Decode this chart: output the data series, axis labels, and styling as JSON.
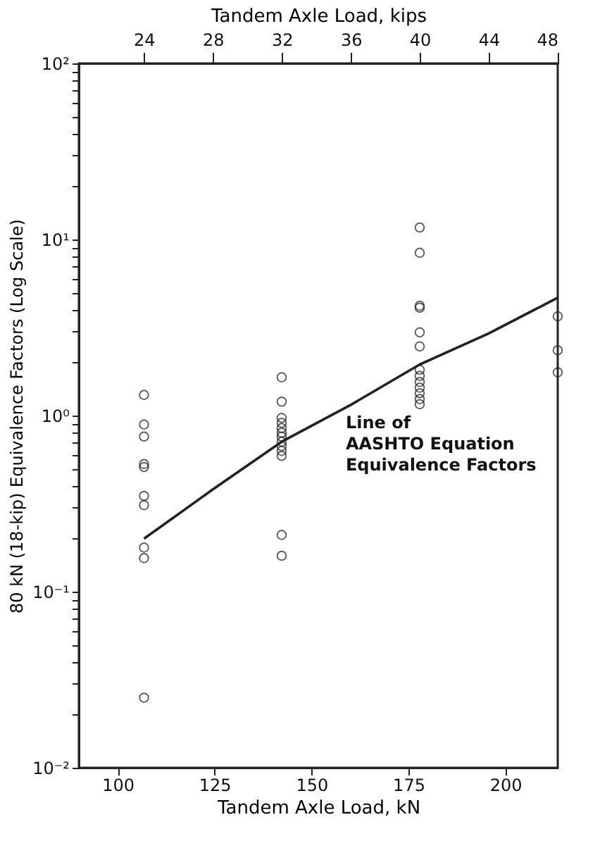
{
  "chart_data": {
    "type": "scatter",
    "xlabel": "Tandem Axle Load, kN",
    "x2label": "Tandem Axle Load, kips",
    "ylabel": "80 kN (18-kip) Equivalence Factors (Log Scale)",
    "log": "y",
    "grid": false,
    "xlim": [
      90,
      213.5
    ],
    "xticks": [
      100,
      125,
      150,
      175,
      200
    ],
    "x2lim": [
      20.23,
      48
    ],
    "x2ticks": [
      24,
      28,
      32,
      36,
      40,
      44,
      48
    ],
    "ylim": [
      0.01,
      100
    ],
    "yticks": [
      {
        "value": 0.01,
        "label": "10⁻²"
      },
      {
        "value": 0.02,
        "label": null
      },
      {
        "value": 0.03,
        "label": null
      },
      {
        "value": 0.04,
        "label": null
      },
      {
        "value": 0.05,
        "label": null
      },
      {
        "value": 0.06,
        "label": null
      },
      {
        "value": 0.07,
        "label": null
      },
      {
        "value": 0.08,
        "label": null
      },
      {
        "value": 0.09,
        "label": null
      },
      {
        "value": 0.1,
        "label": "10⁻¹"
      },
      {
        "value": 0.2,
        "label": null
      },
      {
        "value": 0.3,
        "label": null
      },
      {
        "value": 0.4,
        "label": null
      },
      {
        "value": 0.5,
        "label": null
      },
      {
        "value": 0.6,
        "label": null
      },
      {
        "value": 0.7,
        "label": null
      },
      {
        "value": 0.8,
        "label": null
      },
      {
        "value": 0.9,
        "label": null
      },
      {
        "value": 1,
        "label": "10⁰"
      },
      {
        "value": 2,
        "label": null
      },
      {
        "value": 3,
        "label": null
      },
      {
        "value": 4,
        "label": null
      },
      {
        "value": 5,
        "label": null
      },
      {
        "value": 6,
        "label": null
      },
      {
        "value": 7,
        "label": null
      },
      {
        "value": 8,
        "label": null
      },
      {
        "value": 9,
        "label": null
      },
      {
        "value": 10,
        "label": "10¹"
      },
      {
        "value": 20,
        "label": null
      },
      {
        "value": 30,
        "label": null
      },
      {
        "value": 40,
        "label": null
      },
      {
        "value": 50,
        "label": null
      },
      {
        "value": 60,
        "label": null
      },
      {
        "value": 70,
        "label": null
      },
      {
        "value": 80,
        "label": null
      },
      {
        "value": 90,
        "label": null
      },
      {
        "value": 100,
        "label": "10²"
      }
    ],
    "marker": "circle",
    "series": [
      {
        "color": "#222222",
        "x": [
          106.8,
          106.8,
          106.8,
          106.8,
          106.8,
          106.8,
          106.8,
          106.8,
          106.8,
          106.8,
          142.3,
          142.3,
          142.3,
          142.3,
          142.3,
          142.3,
          142.3,
          142.3,
          142.3,
          142.3,
          142.3,
          142.3,
          142.3,
          177.9,
          177.9,
          177.9,
          177.9,
          177.9,
          177.9,
          177.9,
          177.9,
          177.9,
          177.9,
          177.9,
          177.9,
          177.9,
          213.5,
          213.5,
          213.5
        ],
        "values": [
          1.31,
          0.89,
          0.76,
          0.53,
          0.51,
          0.35,
          0.31,
          0.178,
          0.155,
          0.025,
          1.65,
          1.2,
          0.97,
          0.91,
          0.85,
          0.8,
          0.76,
          0.71,
          0.67,
          0.63,
          0.59,
          0.21,
          0.16,
          11.7,
          8.4,
          4.2,
          4.1,
          2.97,
          2.47,
          1.82,
          1.68,
          1.55,
          1.44,
          1.34,
          1.24,
          1.16,
          3.66,
          2.35,
          1.76
        ]
      },
      {
        "type": "line",
        "color": "#222222",
        "marker": "none",
        "line_style": "solid",
        "x": [
          106.8,
          124.5,
          142.3,
          160.1,
          177.9,
          195.7,
          213.5
        ],
        "values": [
          0.2,
          0.38,
          0.71,
          1.15,
          1.95,
          2.93,
          4.67
        ]
      }
    ],
    "annotations": [
      {
        "text": "Line of\nAASHTO Equation\nEquivalence Factors",
        "x": 157,
        "y": 1.2
      }
    ]
  }
}
